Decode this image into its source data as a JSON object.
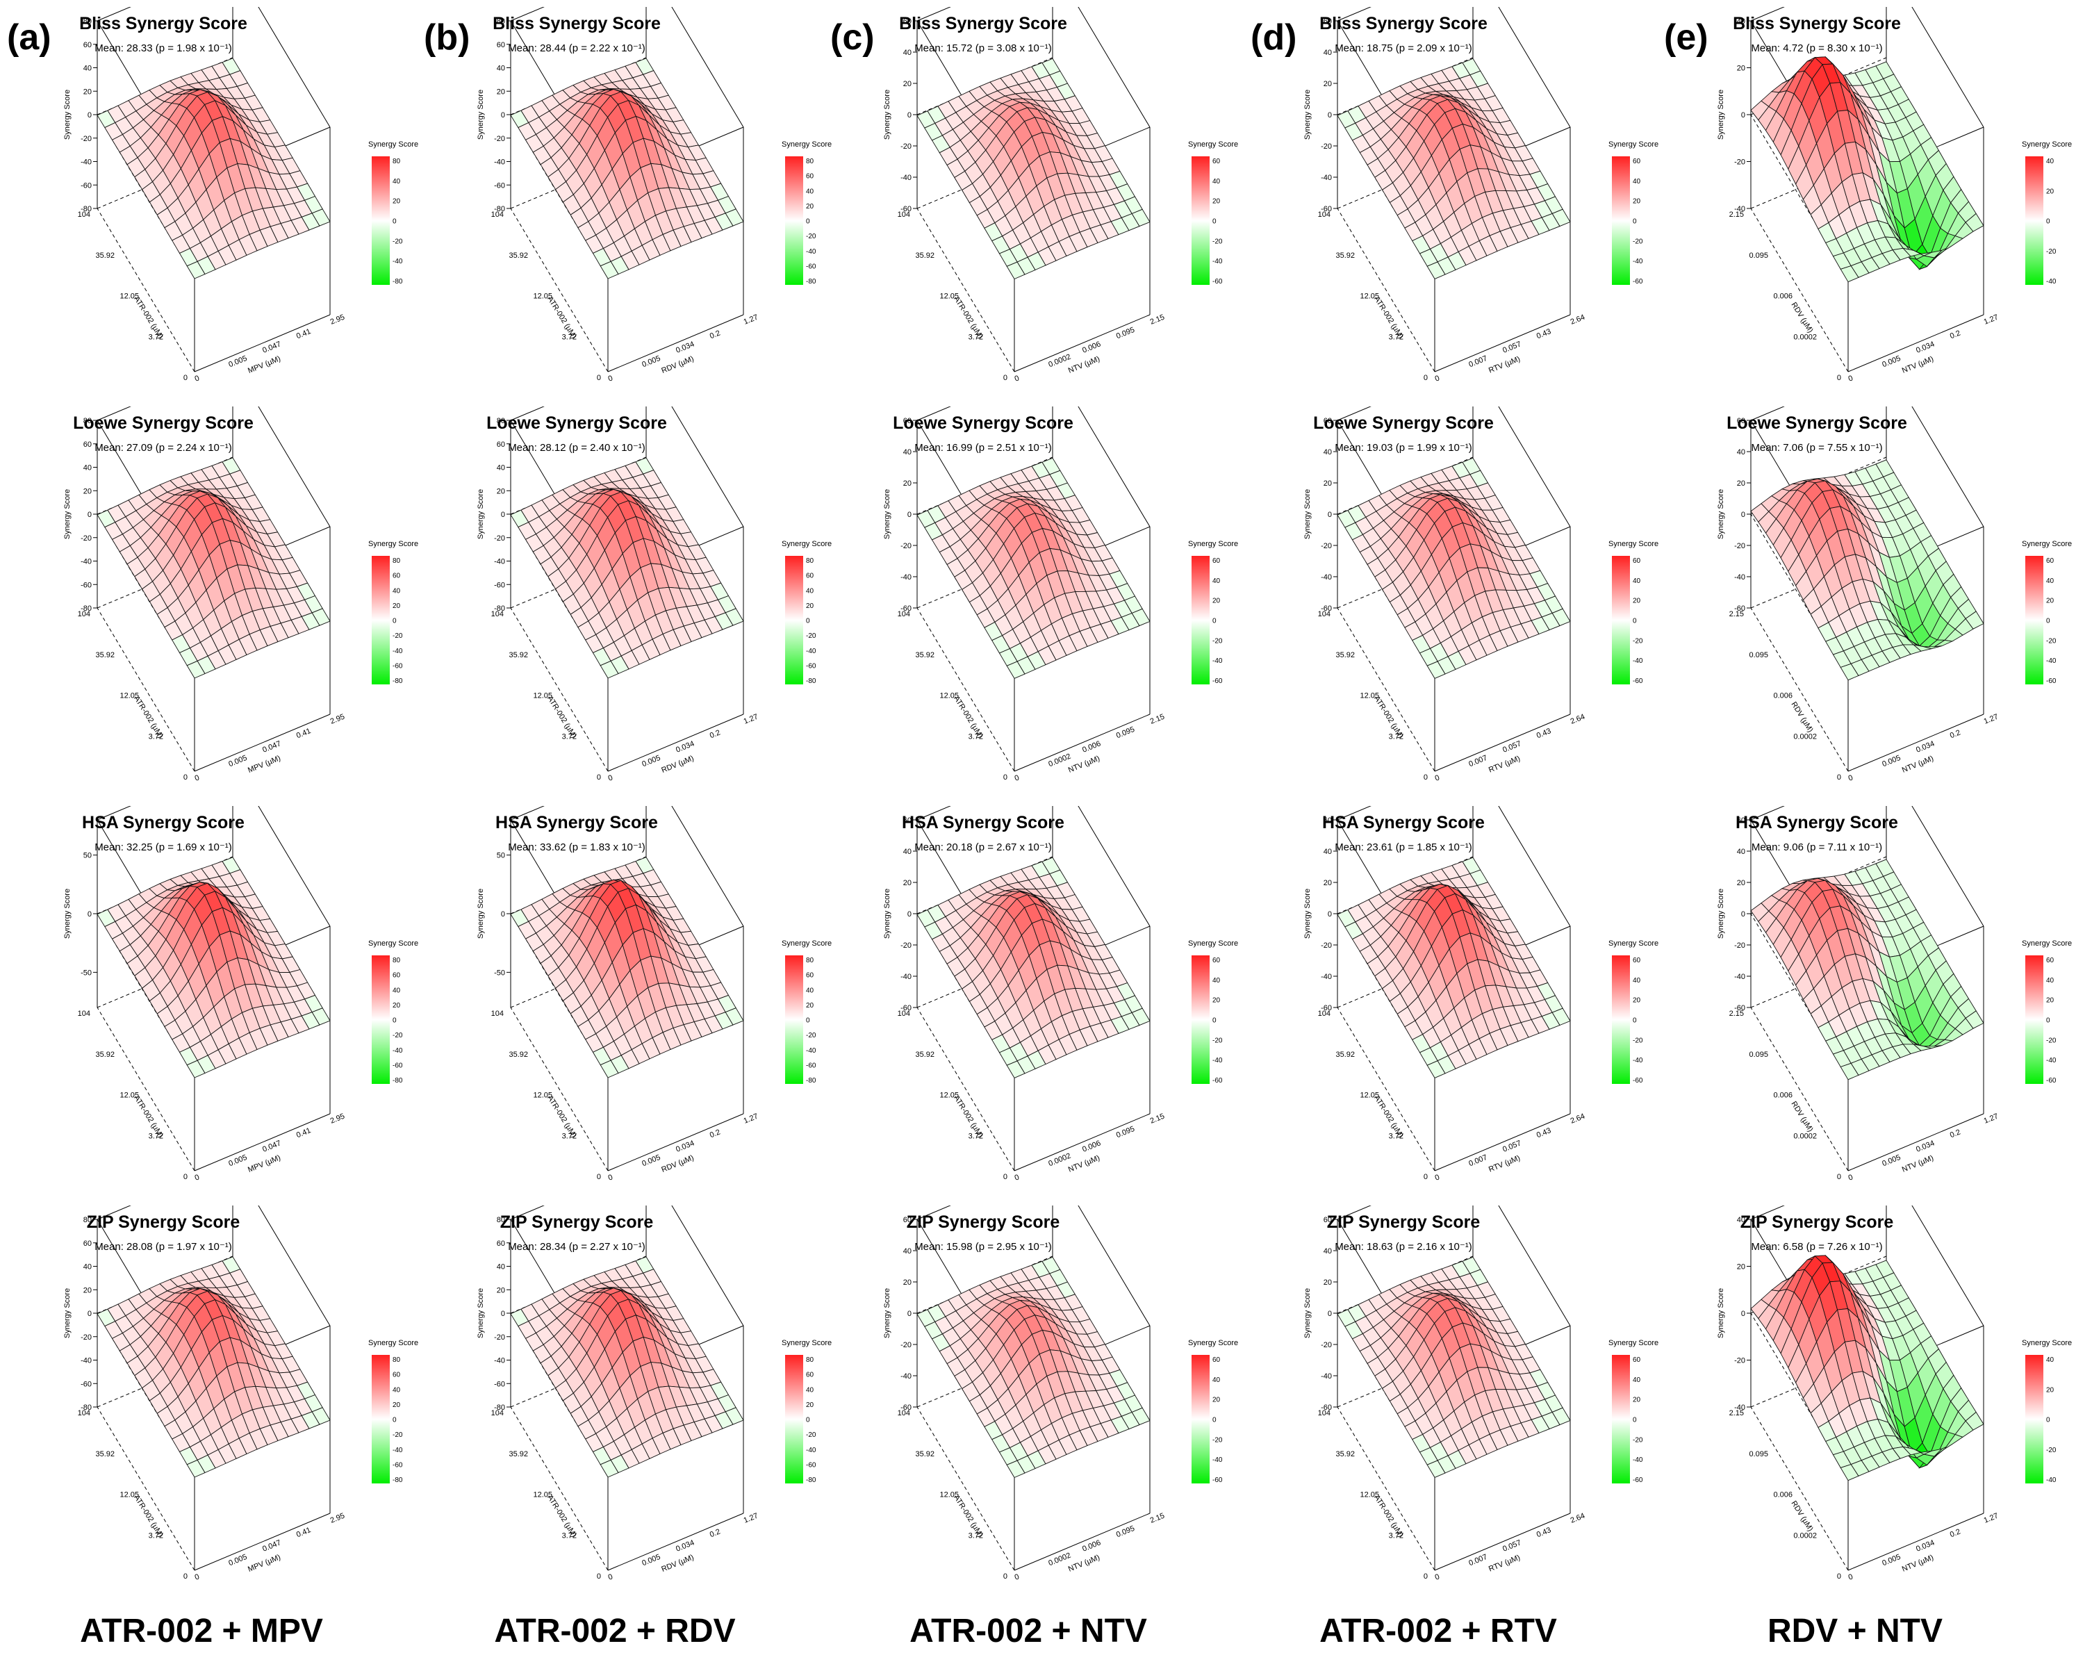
{
  "columns": [
    {
      "letter": "(a)",
      "title": "ATR-002 + MPV",
      "ylabel": "ATR-002 (µM)",
      "xlabel": "MPV (µM)",
      "yticks": [
        "0",
        "3.72",
        "12.05",
        "35.92",
        "104"
      ],
      "xticks": [
        "0",
        "0.005",
        "0.047",
        "0.41",
        "2.95"
      ],
      "dip": false
    },
    {
      "letter": "(b)",
      "title": "ATR-002 + RDV",
      "ylabel": "ATR-002 (µM)",
      "xlabel": "RDV (µM)",
      "yticks": [
        "0",
        "3.72",
        "12.05",
        "35.92",
        "104"
      ],
      "xticks": [
        "0",
        "0.005",
        "0.034",
        "0.2",
        "1.27"
      ],
      "dip": false
    },
    {
      "letter": "(c)",
      "title": "ATR-002 + NTV",
      "ylabel": "ATR-002 (µM)",
      "xlabel": "NTV (µM)",
      "yticks": [
        "0",
        "3.72",
        "12.05",
        "35.92",
        "104"
      ],
      "xticks": [
        "0",
        "0.0002",
        "0.006",
        "0.095",
        "2.15"
      ],
      "dip": false
    },
    {
      "letter": "(d)",
      "title": "ATR-002 + RTV",
      "ylabel": "ATR-002 (µM)",
      "xlabel": "RTV (µM)",
      "yticks": [
        "0",
        "3.72",
        "12.05",
        "35.92",
        "104"
      ],
      "xticks": [
        "0",
        "0.007",
        "0.057",
        "0.43",
        "2.64"
      ],
      "dip": false
    },
    {
      "letter": "(e)",
      "title": "RDV + NTV",
      "ylabel": "RDV (µM)",
      "xlabel": "NTV (µM)",
      "yticks": [
        "0",
        "0.0002",
        "0.006",
        "0.095",
        "2.15"
      ],
      "xticks": [
        "0",
        "0.005",
        "0.034",
        "0.2",
        "1.27"
      ],
      "dip": true
    }
  ],
  "rows": [
    "Bliss",
    "Loewe",
    "HSA",
    "ZIP"
  ],
  "zlabel": "Synergy Score",
  "legend_title": "Synergy Score",
  "colors": {
    "high": "#ff2020",
    "mid": "#ffffff",
    "low": "#00ee00"
  },
  "chart_data": [
    {
      "type": "surface3d",
      "column": "(a)",
      "title": "Bliss Synergy Score",
      "mean_text": "Mean: 28.33 (p = 1.98 x 10⁻¹)",
      "mean": 28.33,
      "zticks": [
        "-80",
        "-60",
        "-40",
        "-20",
        "0",
        "20",
        "40",
        "60",
        "80"
      ],
      "zlim": [
        -80,
        80
      ],
      "legend_ticks": [
        "80",
        "40",
        "20",
        "0",
        "-20",
        "-40",
        "-80"
      ]
    },
    {
      "type": "surface3d",
      "column": "(b)",
      "title": "Bliss Synergy Score",
      "mean_text": "Mean: 28.44 (p = 2.22 x 10⁻¹)",
      "mean": 28.44,
      "zticks": [
        "-80",
        "-60",
        "-40",
        "-20",
        "0",
        "20",
        "40",
        "60",
        "80"
      ],
      "zlim": [
        -80,
        80
      ],
      "legend_ticks": [
        "80",
        "60",
        "40",
        "20",
        "0",
        "-20",
        "-40",
        "-60",
        "-80"
      ]
    },
    {
      "type": "surface3d",
      "column": "(c)",
      "title": "Bliss Synergy Score",
      "mean_text": "Mean: 15.72 (p = 3.08 x 10⁻¹)",
      "mean": 15.72,
      "zticks": [
        "-60",
        "-40",
        "-20",
        "0",
        "20",
        "40",
        "60"
      ],
      "zlim": [
        -60,
        60
      ],
      "legend_ticks": [
        "60",
        "40",
        "20",
        "0",
        "-20",
        "-40",
        "-60"
      ]
    },
    {
      "type": "surface3d",
      "column": "(d)",
      "title": "Bliss Synergy Score",
      "mean_text": "Mean: 18.75 (p = 2.09 x 10⁻¹)",
      "mean": 18.75,
      "zticks": [
        "-60",
        "-40",
        "-20",
        "0",
        "20",
        "40",
        "60"
      ],
      "zlim": [
        -60,
        60
      ],
      "legend_ticks": [
        "60",
        "40",
        "20",
        "0",
        "-20",
        "-40",
        "-60"
      ]
    },
    {
      "type": "surface3d",
      "column": "(e)",
      "title": "Bliss Synergy Score",
      "mean_text": "Mean: 4.72 (p = 8.30 x 10⁻¹)",
      "mean": 4.72,
      "zticks": [
        "-40",
        "-20",
        "0",
        "20",
        "40"
      ],
      "zlim": [
        -40,
        40
      ],
      "legend_ticks": [
        "40",
        "20",
        "0",
        "-20",
        "-40"
      ]
    },
    {
      "type": "surface3d",
      "column": "(a)",
      "title": "Loewe Synergy Score",
      "mean_text": "Mean: 27.09 (p = 2.24 x 10⁻¹)",
      "mean": 27.09,
      "zticks": [
        "-80",
        "-60",
        "-40",
        "-20",
        "0",
        "20",
        "40",
        "60",
        "80"
      ],
      "zlim": [
        -80,
        80
      ],
      "legend_ticks": [
        "80",
        "60",
        "40",
        "20",
        "0",
        "-20",
        "-40",
        "-60",
        "-80"
      ]
    },
    {
      "type": "surface3d",
      "column": "(b)",
      "title": "Loewe Synergy Score",
      "mean_text": "Mean: 28.12 (p = 2.40 x 10⁻¹)",
      "mean": 28.12,
      "zticks": [
        "-80",
        "-60",
        "-40",
        "-20",
        "0",
        "20",
        "40",
        "60",
        "80"
      ],
      "zlim": [
        -80,
        80
      ],
      "legend_ticks": [
        "80",
        "60",
        "40",
        "20",
        "0",
        "-20",
        "-40",
        "-60",
        "-80"
      ]
    },
    {
      "type": "surface3d",
      "column": "(c)",
      "title": "Loewe Synergy Score",
      "mean_text": "Mean: 16.99 (p = 2.51 x 10⁻¹)",
      "mean": 16.99,
      "zticks": [
        "-60",
        "-40",
        "-20",
        "0",
        "20",
        "40",
        "60"
      ],
      "zlim": [
        -60,
        60
      ],
      "legend_ticks": [
        "60",
        "40",
        "20",
        "0",
        "-20",
        "-40",
        "-60"
      ]
    },
    {
      "type": "surface3d",
      "column": "(d)",
      "title": "Loewe Synergy Score",
      "mean_text": "Mean: 19.03 (p = 1.99 x 10⁻¹)",
      "mean": 19.03,
      "zticks": [
        "-60",
        "-40",
        "-20",
        "0",
        "20",
        "40",
        "60"
      ],
      "zlim": [
        -60,
        60
      ],
      "legend_ticks": [
        "60",
        "40",
        "20",
        "0",
        "-20",
        "-40",
        "-60"
      ]
    },
    {
      "type": "surface3d",
      "column": "(e)",
      "title": "Loewe Synergy Score",
      "mean_text": "Mean: 7.06 (p = 7.55 x 10⁻¹)",
      "mean": 7.06,
      "zticks": [
        "-60",
        "-40",
        "-20",
        "0",
        "20",
        "40",
        "60"
      ],
      "zlim": [
        -60,
        60
      ],
      "legend_ticks": [
        "60",
        "40",
        "20",
        "0",
        "-20",
        "-40",
        "-60"
      ]
    },
    {
      "type": "surface3d",
      "column": "(a)",
      "title": "HSA Synergy Score",
      "mean_text": "Mean: 32.25 (p = 1.69 x 10⁻¹)",
      "mean": 32.25,
      "zticks": [
        "-50",
        "0",
        "50"
      ],
      "zlim": [
        -80,
        80
      ],
      "legend_ticks": [
        "80",
        "60",
        "40",
        "20",
        "0",
        "-20",
        "-40",
        "-60",
        "-80"
      ]
    },
    {
      "type": "surface3d",
      "column": "(b)",
      "title": "HSA Synergy Score",
      "mean_text": "Mean: 33.62 (p = 1.83 x 10⁻¹)",
      "mean": 33.62,
      "zticks": [
        "-50",
        "0",
        "50"
      ],
      "zlim": [
        -80,
        80
      ],
      "legend_ticks": [
        "80",
        "60",
        "40",
        "20",
        "0",
        "-20",
        "-40",
        "-60",
        "-80"
      ]
    },
    {
      "type": "surface3d",
      "column": "(c)",
      "title": "HSA Synergy Score",
      "mean_text": "Mean: 20.18 (p = 2.67 x 10⁻¹)",
      "mean": 20.18,
      "zticks": [
        "-60",
        "-40",
        "-20",
        "0",
        "20",
        "40",
        "60"
      ],
      "zlim": [
        -60,
        60
      ],
      "legend_ticks": [
        "60",
        "40",
        "20",
        "0",
        "-20",
        "-40",
        "-60"
      ]
    },
    {
      "type": "surface3d",
      "column": "(d)",
      "title": "HSA Synergy Score",
      "mean_text": "Mean: 23.61 (p = 1.85 x 10⁻¹)",
      "mean": 23.61,
      "zticks": [
        "-60",
        "-40",
        "-20",
        "0",
        "20",
        "40",
        "60"
      ],
      "zlim": [
        -60,
        60
      ],
      "legend_ticks": [
        "60",
        "40",
        "20",
        "0",
        "-20",
        "-40",
        "-60"
      ]
    },
    {
      "type": "surface3d",
      "column": "(e)",
      "title": "HSA Synergy Score",
      "mean_text": "Mean: 9.06 (p = 7.11 x 10⁻¹)",
      "mean": 9.06,
      "zticks": [
        "-60",
        "-40",
        "-20",
        "0",
        "20",
        "40",
        "60"
      ],
      "zlim": [
        -60,
        60
      ],
      "legend_ticks": [
        "60",
        "40",
        "20",
        "0",
        "-20",
        "-40",
        "-60"
      ]
    },
    {
      "type": "surface3d",
      "column": "(a)",
      "title": "ZIP Synergy Score",
      "mean_text": "Mean: 28.08 (p = 1.97 x 10⁻¹)",
      "mean": 28.08,
      "zticks": [
        "-80",
        "-60",
        "-40",
        "-20",
        "0",
        "20",
        "40",
        "60",
        "80"
      ],
      "zlim": [
        -80,
        80
      ],
      "legend_ticks": [
        "80",
        "60",
        "40",
        "20",
        "0",
        "-20",
        "-40",
        "-60",
        "-80"
      ]
    },
    {
      "type": "surface3d",
      "column": "(b)",
      "title": "ZIP Synergy Score",
      "mean_text": "Mean: 28.34 (p = 2.27 x 10⁻¹)",
      "mean": 28.34,
      "zticks": [
        "-80",
        "-60",
        "-40",
        "-20",
        "0",
        "20",
        "40",
        "60",
        "80"
      ],
      "zlim": [
        -80,
        80
      ],
      "legend_ticks": [
        "80",
        "60",
        "40",
        "20",
        "0",
        "-20",
        "-40",
        "-60",
        "-80"
      ]
    },
    {
      "type": "surface3d",
      "column": "(c)",
      "title": "ZIP Synergy Score",
      "mean_text": "Mean: 15.98 (p = 2.95 x 10⁻¹)",
      "mean": 15.98,
      "zticks": [
        "-60",
        "-40",
        "-20",
        "0",
        "20",
        "40",
        "60"
      ],
      "zlim": [
        -60,
        60
      ],
      "legend_ticks": [
        "60",
        "40",
        "20",
        "0",
        "-20",
        "-40",
        "-60"
      ]
    },
    {
      "type": "surface3d",
      "column": "(d)",
      "title": "ZIP Synergy Score",
      "mean_text": "Mean: 18.63 (p = 2.16 x 10⁻¹)",
      "mean": 18.63,
      "zticks": [
        "-60",
        "-40",
        "-20",
        "0",
        "20",
        "40",
        "60"
      ],
      "zlim": [
        -60,
        60
      ],
      "legend_ticks": [
        "60",
        "40",
        "20",
        "0",
        "-20",
        "-40",
        "-60"
      ]
    },
    {
      "type": "surface3d",
      "column": "(e)",
      "title": "ZIP Synergy Score",
      "mean_text": "Mean: 6.58 (p = 7.26 x 10⁻¹)",
      "mean": 6.58,
      "zticks": [
        "-40",
        "-20",
        "0",
        "20",
        "40"
      ],
      "zlim": [
        -40,
        40
      ],
      "legend_ticks": [
        "40",
        "20",
        "0",
        "-20",
        "-40"
      ]
    }
  ]
}
